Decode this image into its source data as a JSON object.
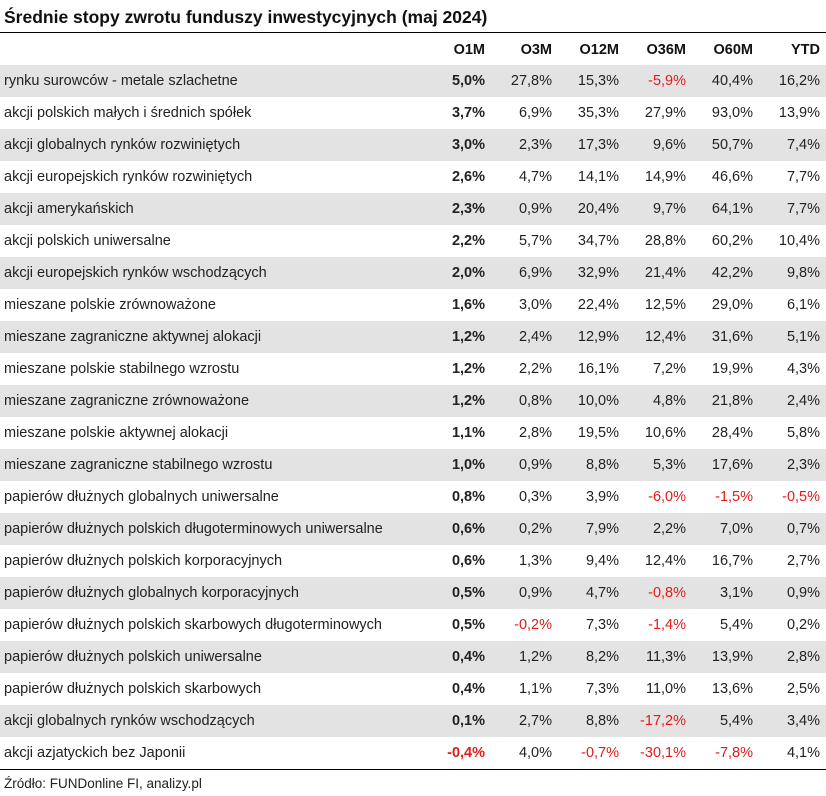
{
  "title": "Średnie stopy zwrotu funduszy inwestycyjnych (maj 2024)",
  "columns": [
    "",
    "O1M",
    "O3M",
    "O12M",
    "O36M",
    "O60M",
    "YTD"
  ],
  "colors": {
    "negative": "#e21b1b",
    "stripe": "#e3e3e3"
  },
  "rows": [
    {
      "name": "rynku surowców - metale szlachetne",
      "o1m": "5,0%",
      "o3m": "27,8%",
      "o12m": "15,3%",
      "o36m": "-5,9%",
      "o60m": "40,4%",
      "ytd": "16,2%"
    },
    {
      "name": "akcji polskich małych i średnich spółek",
      "o1m": "3,7%",
      "o3m": "6,9%",
      "o12m": "35,3%",
      "o36m": "27,9%",
      "o60m": "93,0%",
      "ytd": "13,9%"
    },
    {
      "name": "akcji globalnych rynków rozwiniętych",
      "o1m": "3,0%",
      "o3m": "2,3%",
      "o12m": "17,3%",
      "o36m": "9,6%",
      "o60m": "50,7%",
      "ytd": "7,4%"
    },
    {
      "name": "akcji europejskich rynków rozwiniętych",
      "o1m": "2,6%",
      "o3m": "4,7%",
      "o12m": "14,1%",
      "o36m": "14,9%",
      "o60m": "46,6%",
      "ytd": "7,7%"
    },
    {
      "name": "akcji amerykańskich",
      "o1m": "2,3%",
      "o3m": "0,9%",
      "o12m": "20,4%",
      "o36m": "9,7%",
      "o60m": "64,1%",
      "ytd": "7,7%"
    },
    {
      "name": "akcji polskich uniwersalne",
      "o1m": "2,2%",
      "o3m": "5,7%",
      "o12m": "34,7%",
      "o36m": "28,8%",
      "o60m": "60,2%",
      "ytd": "10,4%"
    },
    {
      "name": "akcji europejskich rynków wschodzących",
      "o1m": "2,0%",
      "o3m": "6,9%",
      "o12m": "32,9%",
      "o36m": "21,4%",
      "o60m": "42,2%",
      "ytd": "9,8%"
    },
    {
      "name": "mieszane polskie zrównoważone",
      "o1m": "1,6%",
      "o3m": "3,0%",
      "o12m": "22,4%",
      "o36m": "12,5%",
      "o60m": "29,0%",
      "ytd": "6,1%"
    },
    {
      "name": "mieszane zagraniczne aktywnej alokacji",
      "o1m": "1,2%",
      "o3m": "2,4%",
      "o12m": "12,9%",
      "o36m": "12,4%",
      "o60m": "31,6%",
      "ytd": "5,1%"
    },
    {
      "name": "mieszane polskie stabilnego wzrostu",
      "o1m": "1,2%",
      "o3m": "2,2%",
      "o12m": "16,1%",
      "o36m": "7,2%",
      "o60m": "19,9%",
      "ytd": "4,3%"
    },
    {
      "name": "mieszane zagraniczne zrównoważone",
      "o1m": "1,2%",
      "o3m": "0,8%",
      "o12m": "10,0%",
      "o36m": "4,8%",
      "o60m": "21,8%",
      "ytd": "2,4%"
    },
    {
      "name": "mieszane polskie aktywnej alokacji",
      "o1m": "1,1%",
      "o3m": "2,8%",
      "o12m": "19,5%",
      "o36m": "10,6%",
      "o60m": "28,4%",
      "ytd": "5,8%"
    },
    {
      "name": "mieszane zagraniczne stabilnego wzrostu",
      "o1m": "1,0%",
      "o3m": "0,9%",
      "o12m": "8,8%",
      "o36m": "5,3%",
      "o60m": "17,6%",
      "ytd": "2,3%"
    },
    {
      "name": "papierów dłużnych globalnych uniwersalne",
      "o1m": "0,8%",
      "o3m": "0,3%",
      "o12m": "3,9%",
      "o36m": "-6,0%",
      "o60m": "-1,5%",
      "ytd": "-0,5%"
    },
    {
      "name": "papierów dłużnych polskich długoterminowych uniwersalne",
      "o1m": "0,6%",
      "o3m": "0,2%",
      "o12m": "7,9%",
      "o36m": "2,2%",
      "o60m": "7,0%",
      "ytd": "0,7%"
    },
    {
      "name": "papierów dłużnych polskich korporacyjnych",
      "o1m": "0,6%",
      "o3m": "1,3%",
      "o12m": "9,4%",
      "o36m": "12,4%",
      "o60m": "16,7%",
      "ytd": "2,7%"
    },
    {
      "name": "papierów dłużnych globalnych korporacyjnych",
      "o1m": "0,5%",
      "o3m": "0,9%",
      "o12m": "4,7%",
      "o36m": "-0,8%",
      "o60m": "3,1%",
      "ytd": "0,9%"
    },
    {
      "name": "papierów dłużnych polskich skarbowych długoterminowych",
      "o1m": "0,5%",
      "o3m": "-0,2%",
      "o12m": "7,3%",
      "o36m": "-1,4%",
      "o60m": "5,4%",
      "ytd": "0,2%"
    },
    {
      "name": "papierów dłużnych polskich uniwersalne",
      "o1m": "0,4%",
      "o3m": "1,2%",
      "o12m": "8,2%",
      "o36m": "11,3%",
      "o60m": "13,9%",
      "ytd": "2,8%"
    },
    {
      "name": "papierów dłużnych polskich skarbowych",
      "o1m": "0,4%",
      "o3m": "1,1%",
      "o12m": "7,3%",
      "o36m": "11,0%",
      "o60m": "13,6%",
      "ytd": "2,5%"
    },
    {
      "name": "akcji globalnych rynków wschodzących",
      "o1m": "0,1%",
      "o3m": "2,7%",
      "o12m": "8,8%",
      "o36m": "-17,2%",
      "o60m": "5,4%",
      "ytd": "3,4%"
    },
    {
      "name": "akcji azjatyckich bez Japonii",
      "o1m": "-0,4%",
      "o3m": "4,0%",
      "o12m": "-0,7%",
      "o36m": "-30,1%",
      "o60m": "-7,8%",
      "ytd": "4,1%"
    }
  ],
  "source": "Źródło: FUNDonline FI, analizy.pl"
}
